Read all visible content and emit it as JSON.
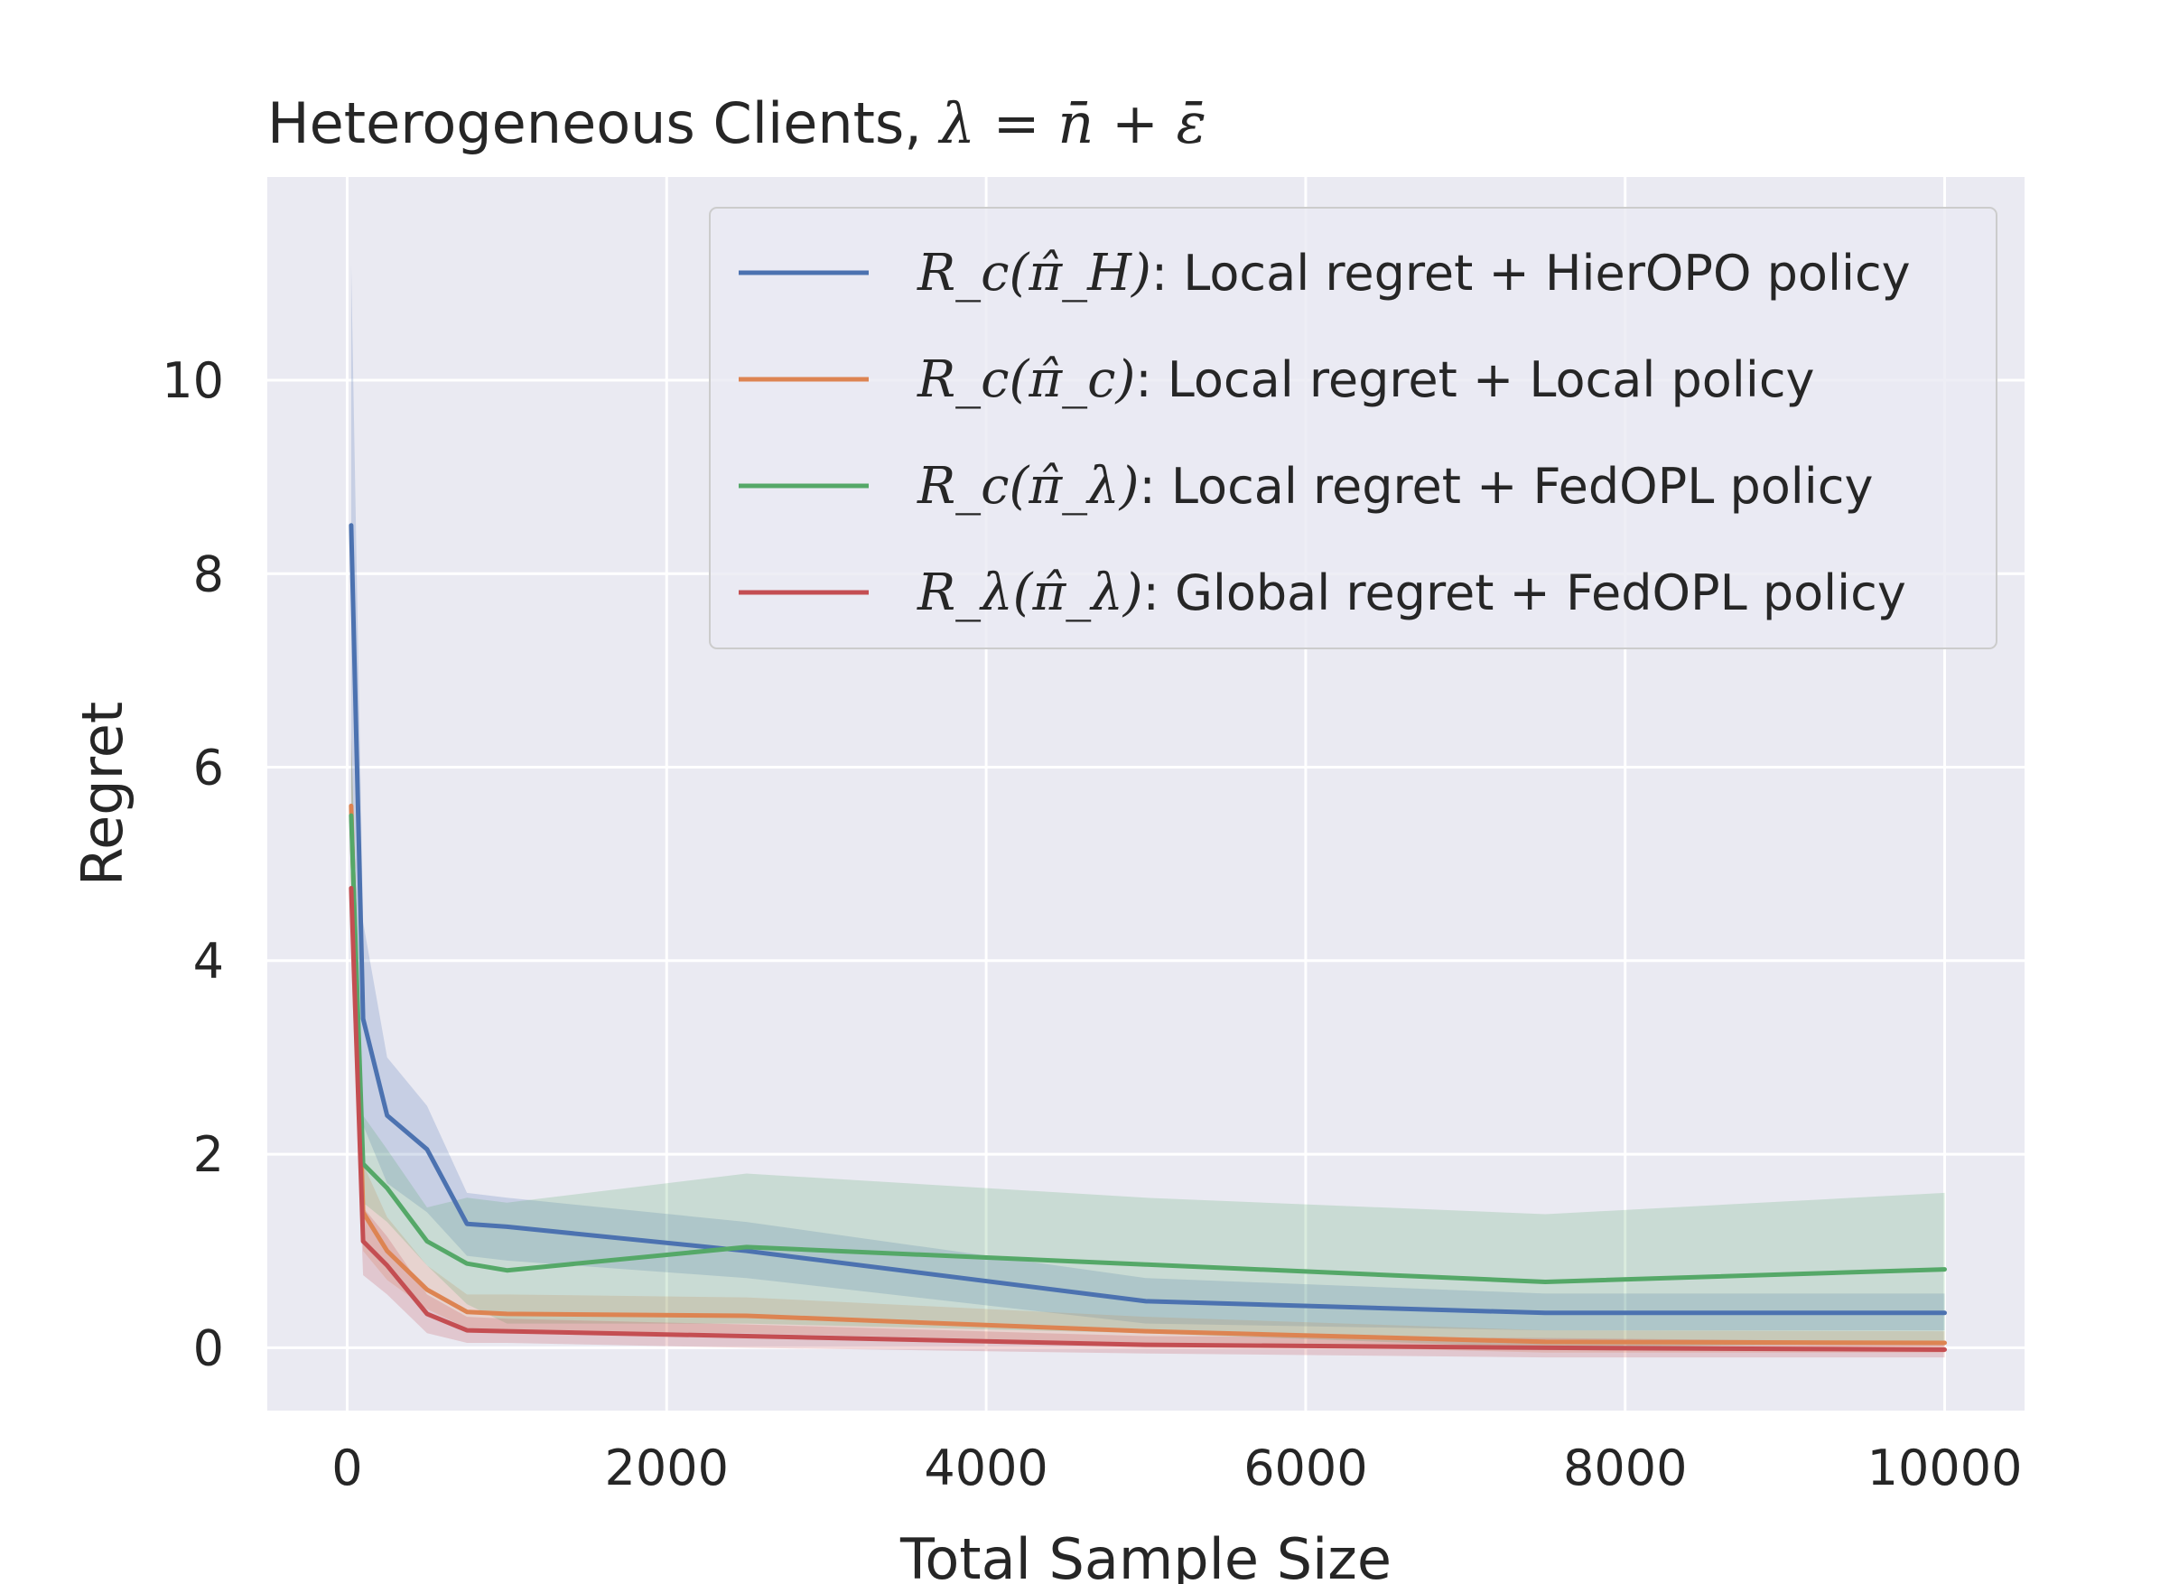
{
  "chart_data": {
    "type": "line",
    "title_text": "Heterogeneous Clients, ",
    "title_math": "λ = n̄ + ε̄",
    "xlabel": "Total Sample Size",
    "ylabel": "Regret",
    "xlim": [
      -500,
      10500
    ],
    "ylim": [
      -0.65,
      12.1
    ],
    "xticks": [
      0,
      2000,
      4000,
      6000,
      8000,
      10000
    ],
    "yticks": [
      0,
      2,
      4,
      6,
      8,
      10
    ],
    "grid": true,
    "legend_position": "top-right",
    "x": [
      25,
      100,
      250,
      500,
      750,
      1000,
      2500,
      5000,
      7500,
      10000
    ],
    "series": [
      {
        "name": "HierOPO",
        "label_math": "R_c(π̂_H)",
        "label_text": ": Local regret + HierOPO policy",
        "color": "#4c72b0",
        "values": [
          8.5,
          3.4,
          2.4,
          2.05,
          1.28,
          1.25,
          1.0,
          0.48,
          0.36,
          0.36
        ],
        "lower": [
          5.8,
          2.3,
          1.7,
          1.4,
          0.95,
          0.9,
          0.72,
          0.25,
          0.18,
          0.18
        ],
        "upper": [
          11.2,
          4.4,
          3.0,
          2.5,
          1.6,
          1.55,
          1.3,
          0.72,
          0.56,
          0.56
        ]
      },
      {
        "name": "Local",
        "label_math": "R_c(π̂_c)",
        "label_text": ": Local regret + Local policy",
        "color": "#dd8452",
        "values": [
          5.6,
          1.4,
          1.0,
          0.6,
          0.37,
          0.35,
          0.33,
          0.17,
          0.06,
          0.05
        ],
        "lower": [
          4.6,
          1.0,
          0.7,
          0.4,
          0.2,
          0.18,
          0.15,
          0.05,
          -0.05,
          -0.05
        ],
        "upper": [
          6.4,
          1.9,
          1.35,
          0.85,
          0.55,
          0.55,
          0.52,
          0.32,
          0.18,
          0.17
        ]
      },
      {
        "name": "FedOPL local",
        "label_math": "R_c(π̂_λ)",
        "label_text": ": Local regret + FedOPL policy",
        "color": "#55a868",
        "values": [
          5.5,
          1.9,
          1.65,
          1.1,
          0.87,
          0.8,
          1.04,
          0.86,
          0.68,
          0.81
        ],
        "lower": [
          4.6,
          1.5,
          1.3,
          0.85,
          0.45,
          0.25,
          0.25,
          0.15,
          0.0,
          0.05
        ],
        "upper": [
          6.3,
          2.4,
          2.05,
          1.45,
          1.55,
          1.5,
          1.8,
          1.55,
          1.38,
          1.6
        ]
      },
      {
        "name": "FedOPL global",
        "label_math": "R_λ(π̂_λ)",
        "label_text": ": Global regret + FedOPL policy",
        "color": "#c44e52",
        "values": [
          4.75,
          1.1,
          0.85,
          0.35,
          0.18,
          0.17,
          0.12,
          0.03,
          0.0,
          -0.02
        ],
        "lower": [
          4.0,
          0.75,
          0.55,
          0.15,
          0.05,
          0.05,
          0.0,
          -0.06,
          -0.1,
          -0.1
        ],
        "upper": [
          5.6,
          1.45,
          1.15,
          0.55,
          0.32,
          0.3,
          0.24,
          0.12,
          0.1,
          0.06
        ]
      }
    ]
  }
}
